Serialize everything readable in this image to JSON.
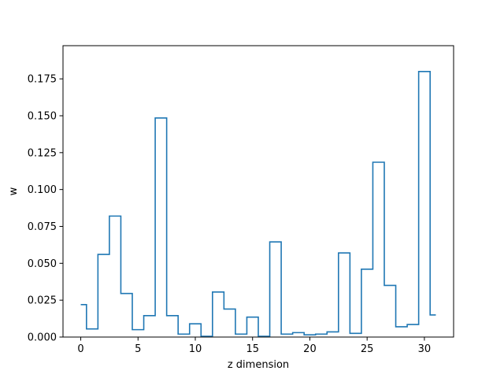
{
  "chart_data": {
    "type": "line",
    "drawstyle": "steps-mid",
    "title": "",
    "xlabel": "z dimension",
    "ylabel": "w",
    "xlim": [
      -1.55,
      32.55
    ],
    "ylim": [
      0,
      0.1975
    ],
    "x_ticks": [
      0,
      5,
      10,
      15,
      20,
      25,
      30
    ],
    "x_tick_labels": [
      "0",
      "5",
      "10",
      "15",
      "20",
      "25",
      "30"
    ],
    "y_ticks": [
      0,
      0.025,
      0.05,
      0.075,
      0.1,
      0.125,
      0.15,
      0.175
    ],
    "y_tick_labels": [
      "0.000",
      "0.025",
      "0.050",
      "0.075",
      "0.100",
      "0.125",
      "0.150",
      "0.175"
    ],
    "grid": false,
    "legend": "none",
    "series": [
      {
        "color": "#1f77b4",
        "x": [
          0,
          1,
          2,
          3,
          4,
          5,
          6,
          7,
          8,
          9,
          10,
          11,
          12,
          13,
          14,
          15,
          16,
          17,
          18,
          19,
          20,
          21,
          22,
          23,
          24,
          25,
          26,
          27,
          28,
          29,
          30,
          31
        ],
        "y": [
          0.022,
          0.0055,
          0.056,
          0.082,
          0.0295,
          0.005,
          0.0145,
          0.1485,
          0.0145,
          0.002,
          0.009,
          0.0005,
          0.0305,
          0.019,
          0.002,
          0.0135,
          0.0005,
          0.0645,
          0.002,
          0.003,
          0.0015,
          0.002,
          0.0035,
          0.057,
          0.0025,
          0.046,
          0.1185,
          0.035,
          0.007,
          0.0085,
          0.18,
          0.015
        ]
      }
    ]
  }
}
